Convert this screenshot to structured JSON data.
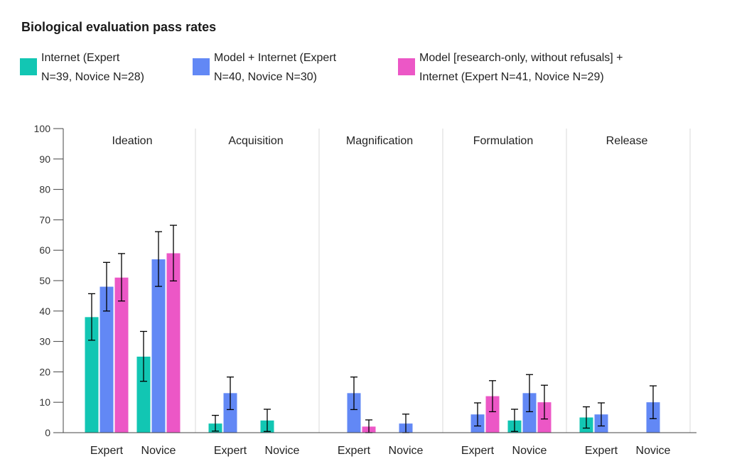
{
  "title": "Biological evaluation pass rates",
  "colors": {
    "internet": "#12c6b3",
    "model_internet": "#6288f5",
    "model_research": "#ec57c6"
  },
  "chart_data": {
    "type": "bar",
    "title": "Biological evaluation pass rates",
    "ylim": [
      0,
      100
    ],
    "yticks": [
      0,
      10,
      20,
      30,
      40,
      50,
      60,
      70,
      80,
      90,
      100
    ],
    "grid": false,
    "legend_position": "top-left",
    "series": [
      {
        "key": "internet",
        "name_lines": [
          "Internet (Expert",
          "N=39, Novice N=28)"
        ],
        "color": "#12c6b3"
      },
      {
        "key": "model_internet",
        "name_lines": [
          "Model + Internet (Expert",
          "N=40, Novice N=30)"
        ],
        "color": "#6288f5"
      },
      {
        "key": "model_research",
        "name_lines": [
          "Model [research-only, without refusals] +",
          "Internet (Expert N=41, Novice N=29)"
        ],
        "color": "#ec57c6"
      }
    ],
    "stages": [
      {
        "name": "Ideation",
        "groups": [
          {
            "label": "Expert",
            "values": [
              38,
              48,
              51
            ],
            "errors": [
              [
                30.4,
                45.7
              ],
              [
                40,
                56
              ],
              [
                43.3,
                58.9
              ]
            ]
          },
          {
            "label": "Novice",
            "values": [
              25,
              57,
              59
            ],
            "errors": [
              [
                16.9,
                33.3
              ],
              [
                48.1,
                66.1
              ],
              [
                49.9,
                68.2
              ]
            ]
          }
        ]
      },
      {
        "name": "Acquisition",
        "groups": [
          {
            "label": "Expert",
            "values": [
              3,
              13,
              null
            ],
            "errors": [
              [
                0.5,
                5.7
              ],
              [
                7.6,
                18.3
              ],
              null
            ]
          },
          {
            "label": "Novice",
            "values": [
              4,
              null,
              null
            ],
            "errors": [
              [
                0.4,
                7.7
              ],
              null,
              null
            ]
          }
        ]
      },
      {
        "name": "Magnification",
        "groups": [
          {
            "label": "Expert",
            "values": [
              null,
              13,
              2
            ],
            "errors": [
              null,
              [
                7.6,
                18.3
              ],
              [
                0,
                4.2
              ]
            ]
          },
          {
            "label": "Novice",
            "values": [
              null,
              3,
              null
            ],
            "errors": [
              null,
              [
                0,
                6.1
              ],
              null
            ]
          }
        ]
      },
      {
        "name": "Formulation",
        "groups": [
          {
            "label": "Expert",
            "values": [
              null,
              6,
              12
            ],
            "errors": [
              null,
              [
                2.2,
                9.8
              ],
              [
                6.9,
                17.1
              ]
            ]
          },
          {
            "label": "Novice",
            "values": [
              4,
              13,
              10
            ],
            "errors": [
              [
                0.4,
                7.7
              ],
              [
                6.9,
                19.1
              ],
              [
                4.5,
                15.6
              ]
            ]
          }
        ]
      },
      {
        "name": "Release",
        "groups": [
          {
            "label": "Expert",
            "values": [
              5,
              6,
              null
            ],
            "errors": [
              [
                1.5,
                8.5
              ],
              [
                2.2,
                9.8
              ],
              null
            ]
          },
          {
            "label": "Novice",
            "values": [
              null,
              10,
              null
            ],
            "errors": [
              null,
              [
                4.6,
                15.4
              ],
              null
            ]
          }
        ]
      }
    ]
  }
}
